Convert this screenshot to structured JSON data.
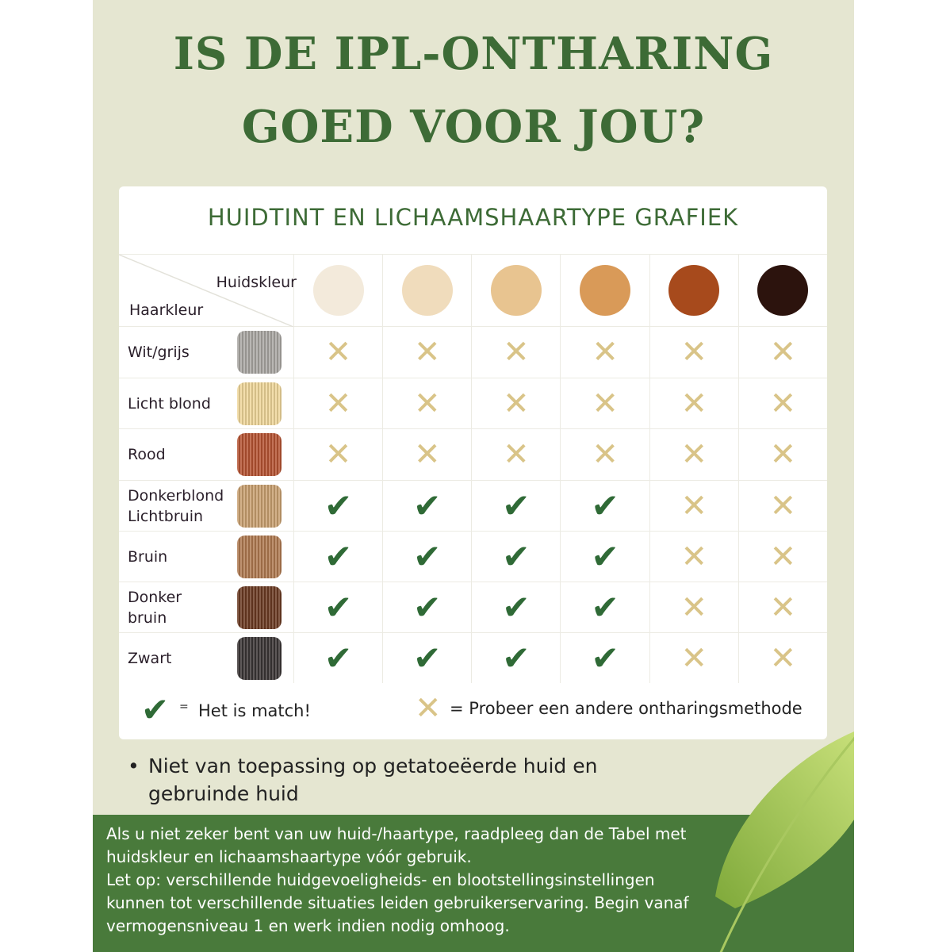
{
  "title": [
    "IS DE IPL-ONTHARING",
    "GOED VOOR JOU?"
  ],
  "card": {
    "title": "HUIDTINT EN LICHAAMSHAARTYPE GRAFIEK",
    "corner_top": "Huidskleur",
    "corner_bottom": "Haarkleur",
    "skin_colors": [
      "#f3eadb",
      "#f0dcbc",
      "#e8c490",
      "#d99a58",
      "#a74a1c",
      "#2c130d"
    ],
    "rows": [
      {
        "label": "Wit/grijs",
        "swatch": "#aaa7a3",
        "match": [
          false,
          false,
          false,
          false,
          false,
          false
        ]
      },
      {
        "label": "Licht blond",
        "swatch": "#f0d79a",
        "match": [
          false,
          false,
          false,
          false,
          false,
          false
        ]
      },
      {
        "label": "Rood",
        "swatch": "#b65332",
        "match": [
          false,
          false,
          false,
          false,
          false,
          false
        ]
      },
      {
        "label": "Donkerblond\nLichtbruin",
        "swatch": "#c9a070",
        "match": [
          true,
          true,
          true,
          true,
          false,
          false
        ]
      },
      {
        "label": "Bruin",
        "swatch": "#b07a50",
        "match": [
          true,
          true,
          true,
          true,
          false,
          false
        ]
      },
      {
        "label": "Donker\nbruin",
        "swatch": "#6b3a22",
        "match": [
          true,
          true,
          true,
          true,
          false,
          false
        ]
      },
      {
        "label": "Zwart",
        "swatch": "#3a3535",
        "match": [
          true,
          true,
          true,
          true,
          false,
          false
        ]
      }
    ],
    "legend": {
      "match_eq": "=",
      "match_text": "Het is match!",
      "nomatch_text": "= Probeer een andere ontharingsmethode"
    }
  },
  "bullet": "Niet van toepassing op getatoeëerde huid en gebruinde huid",
  "band": [
    "Als u niet zeker bent van uw huid-/haartype, raadpleeg dan de Tabel met huidskleur en lichaamshaartype vóór gebruik.",
    "Let op: verschillende huidgevoeligheids- en blootstellingsinstellingen kunnen tot verschillende situaties leiden gebruikerservaring. Begin vanaf vermogensniveau 1 en werk indien nodig omhoog."
  ],
  "colors": {
    "background": "#e5e6d1",
    "accent_green": "#3d6b36",
    "band_green": "#497a3b",
    "cross": "#d9c488",
    "check": "#2f6a36"
  }
}
